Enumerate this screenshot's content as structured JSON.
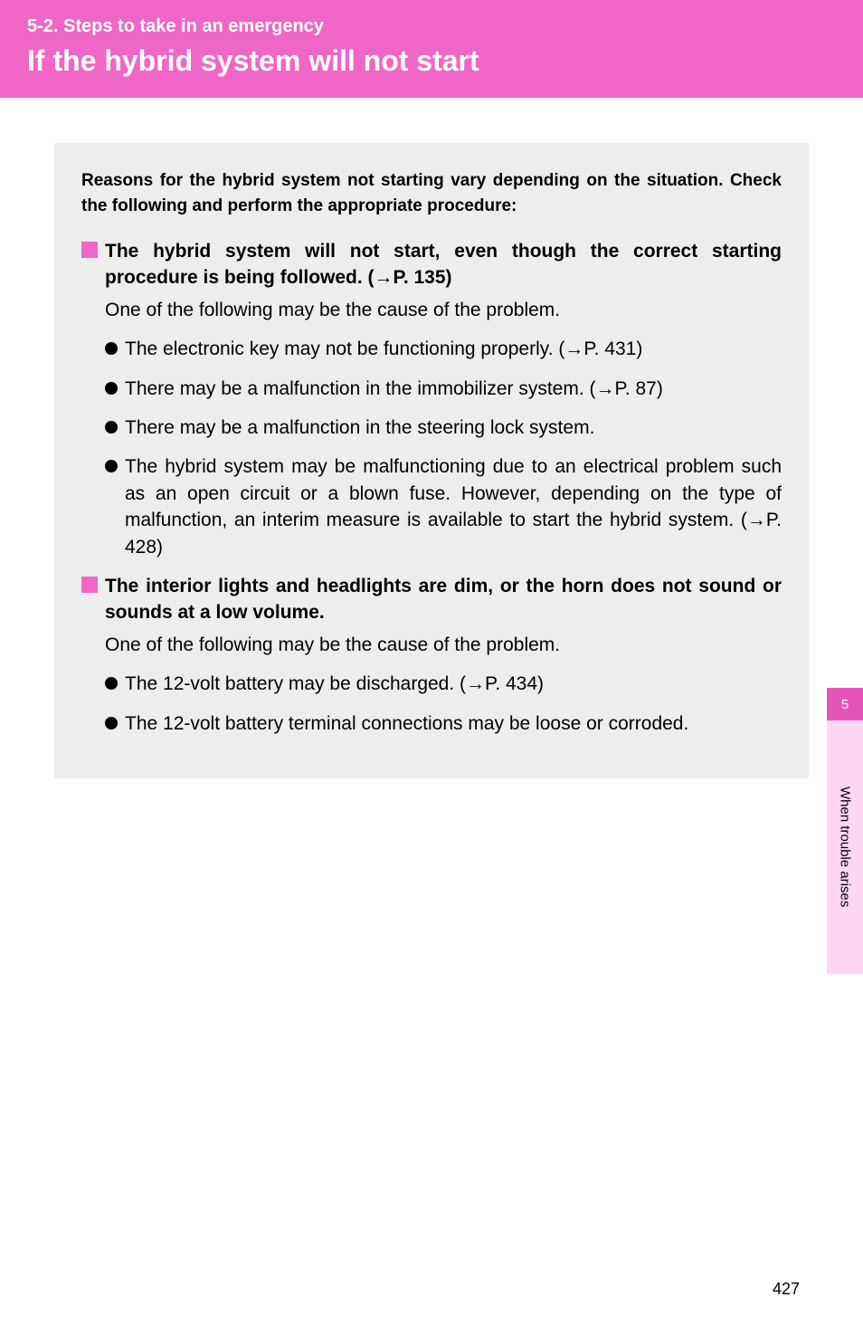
{
  "header": {
    "section_label": "5-2. Steps to take in an emergency",
    "page_title": "If the hybrid system will not start"
  },
  "colors": {
    "header_bg": "#f066c7",
    "content_bg": "#ededed",
    "pink_square": "#f066c7",
    "tab_dark_bg": "#e754b9",
    "tab_light_bg": "#ffd6f2"
  },
  "intro": "Reasons for the hybrid system not starting vary depending on the situation. Check the following and perform the appropriate procedure:",
  "section1": {
    "heading": "The hybrid system will not start, even though the correct starting procedure is being followed. (→P. 135)",
    "subtext": "One of the following may be the cause of the problem.",
    "bullets": [
      "The electronic key may not be functioning properly. (→P. 431)",
      "There may be a malfunction in the immobilizer system. (→P. 87)",
      "There may be a malfunction in the steering lock system.",
      "The hybrid system may be malfunctioning due to an electrical problem such as an open circuit or a blown fuse. However, depending on the type of malfunction, an interim measure is available to start the hybrid system. (→P. 428)"
    ]
  },
  "section2": {
    "heading": "The interior lights and headlights are dim, or the horn does not sound or sounds at a low volume.",
    "subtext": "One of the following may be the cause of the problem.",
    "bullets": [
      "The 12-volt battery may be discharged. (→P. 434)",
      "The 12-volt battery terminal connections may be loose or corroded."
    ]
  },
  "side_tab": {
    "number": "5",
    "label": "When trouble arises"
  },
  "page_number": "427"
}
